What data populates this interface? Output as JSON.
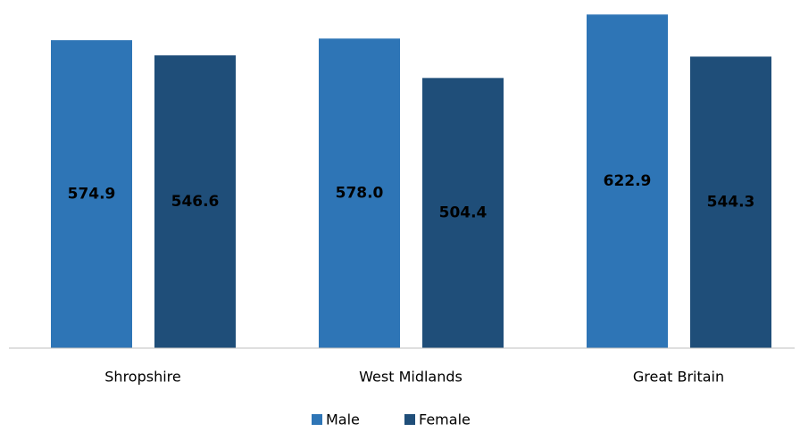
{
  "chart_data": {
    "type": "bar",
    "categories": [
      "Shropshire",
      "West Midlands",
      "Great Britain"
    ],
    "series": [
      {
        "name": "Male",
        "color": "#2e75b6",
        "values": [
          574.9,
          578.0,
          622.9
        ],
        "value_labels": [
          "574.9",
          "578.0",
          "622.9"
        ]
      },
      {
        "name": "Female",
        "color": "#1f4e79",
        "values": [
          546.6,
          504.4,
          544.3
        ],
        "value_labels": [
          "546.6",
          "504.4",
          "544.3"
        ]
      }
    ],
    "legend": "bottom"
  }
}
